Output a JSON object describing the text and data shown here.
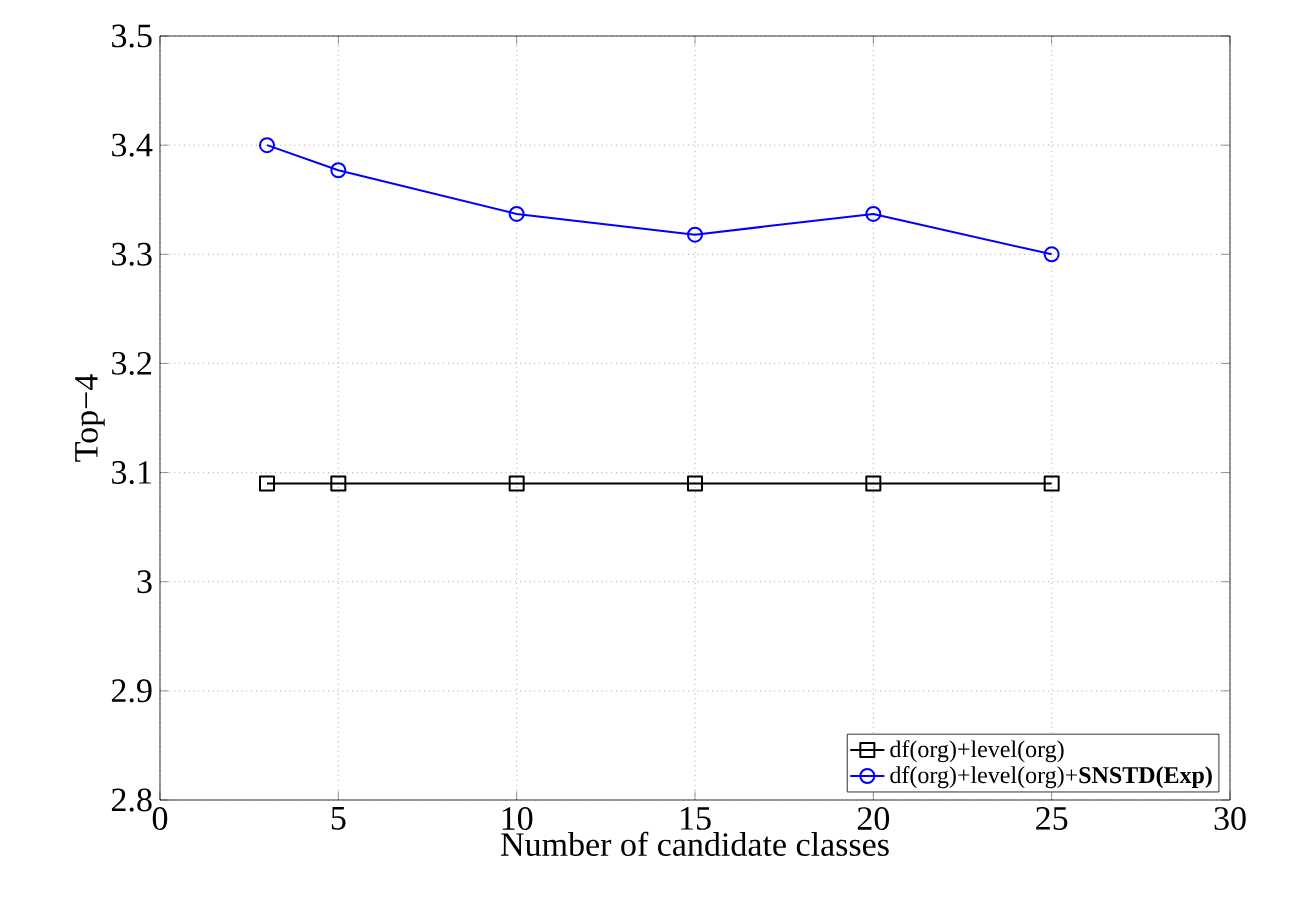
{
  "chart_data": {
    "type": "line",
    "xlabel": "Number of candidate classes",
    "ylabel": "Top−4",
    "x": [
      3,
      5,
      10,
      15,
      20,
      25
    ],
    "series": [
      {
        "name": "df(org)+level(org)",
        "color": "#000000",
        "marker": "square",
        "values": [
          3.09,
          3.09,
          3.09,
          3.09,
          3.09,
          3.09
        ]
      },
      {
        "name": "df(org)+level(org)+**SNSTD(Exp)**",
        "color": "#0000ff",
        "marker": "circle",
        "values": [
          3.4,
          3.377,
          3.337,
          3.318,
          3.337,
          3.3
        ]
      }
    ],
    "xlim": [
      0,
      30
    ],
    "xticks": [
      0,
      5,
      10,
      15,
      20,
      25,
      30
    ],
    "ylim": [
      2.8,
      3.5
    ],
    "yticks": [
      2.8,
      2.9,
      3,
      3.1,
      3.2,
      3.3,
      3.4,
      3.5
    ],
    "grid": true,
    "legend": "bottom right",
    "line_style": "solid"
  }
}
